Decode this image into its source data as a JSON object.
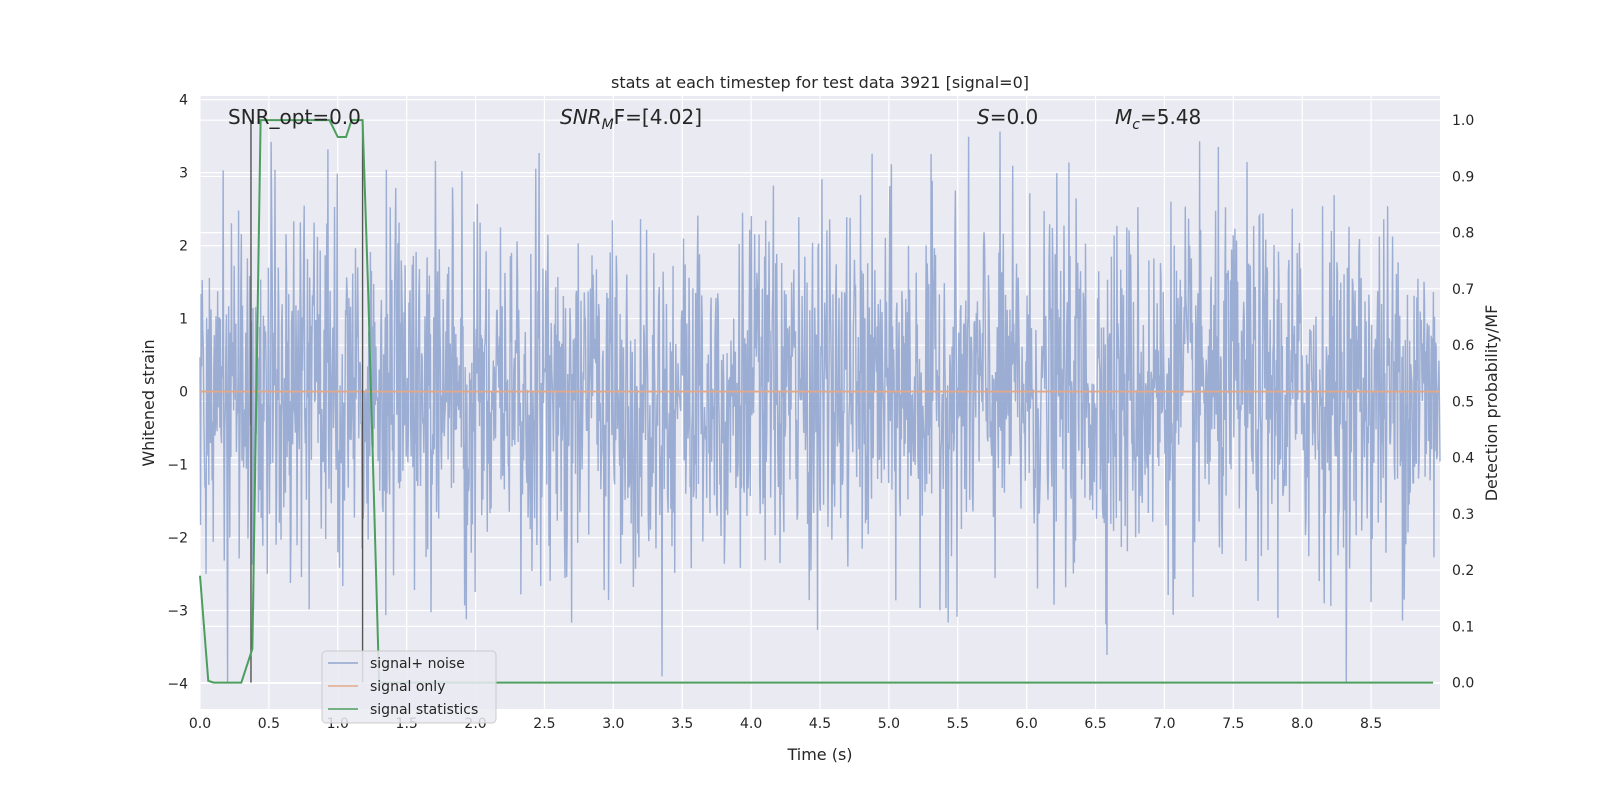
{
  "chart_data": {
    "type": "line",
    "title": "stats at each timestep for test data 3921 [signal=0]",
    "xlabel": "Time (s)",
    "ylabel": "Whitened strain",
    "y2label": "Detection probability/MF",
    "xlim": [
      0.0,
      9.0
    ],
    "ylim": [
      -4.35,
      4.05
    ],
    "y2lim": [
      -0.047,
      1.043
    ],
    "xticks": [
      "0.0",
      "0.5",
      "1.0",
      "1.5",
      "2.0",
      "2.5",
      "3.0",
      "3.5",
      "4.0",
      "4.5",
      "5.0",
      "5.5",
      "6.0",
      "6.5",
      "7.0",
      "7.5",
      "8.0",
      "8.5"
    ],
    "yticks": [
      "4",
      "3",
      "2",
      "1",
      "0",
      "−1",
      "−2",
      "−3",
      "−4"
    ],
    "y2ticks": [
      "1.0",
      "0.9",
      "0.8",
      "0.7",
      "0.6",
      "0.5",
      "0.4",
      "0.3",
      "0.2",
      "0.1",
      "0.0"
    ],
    "grid": true,
    "annotations": {
      "snr_opt": "SNR_opt=0.0",
      "snr_mf_main": "SNR",
      "snr_mf_sub": "M",
      "snr_mf_rest": "F=[4.02]",
      "s_main": "S",
      "s_rest": "=0.0",
      "mc_main": "M",
      "mc_sub": "c",
      "mc_rest": "=5.48"
    },
    "vlines": [
      0.37,
      1.18
    ],
    "noise": {
      "name": "signal+ noise",
      "color": "#92a6cf",
      "n_samples": 2250,
      "typical_abs": 1.6,
      "max": 3.65,
      "min": -4.0
    },
    "signal_only": {
      "name": "signal only",
      "color": "#e1a98c",
      "x": [
        0.0,
        9.0
      ],
      "y": [
        0.0,
        0.0
      ]
    },
    "signal_statistics": {
      "name": "signal statistics",
      "color": "#4c9e5e",
      "x": [
        0.0,
        0.06,
        0.1,
        0.3,
        0.38,
        0.44,
        0.94,
        1.0,
        1.06,
        1.1,
        1.18,
        1.22,
        1.3,
        9.0
      ],
      "y": [
        0.19,
        0.003,
        0.0,
        0.0,
        0.06,
        1.0,
        1.0,
        0.97,
        0.97,
        1.0,
        1.0,
        0.7,
        0.0,
        0.0
      ]
    },
    "legend": {
      "placement": "lower-left",
      "entries": [
        "signal+ noise",
        "signal only",
        "signal statistics"
      ]
    }
  }
}
